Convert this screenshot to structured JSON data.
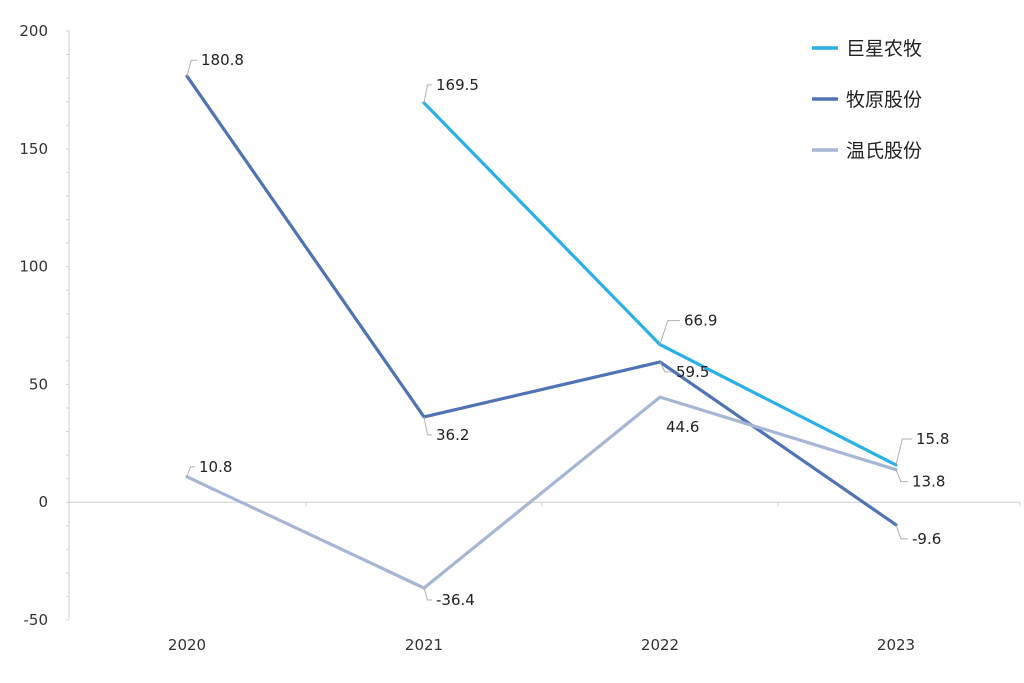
{
  "chart_data": {
    "type": "line",
    "title": "",
    "xlabel": "",
    "ylabel": "",
    "categories": [
      "2020",
      "2021",
      "2022",
      "2023"
    ],
    "ylim": [
      -50,
      200
    ],
    "yticks": [
      -50,
      0,
      50,
      100,
      150,
      200
    ],
    "grid": false,
    "legend_position": "top-right",
    "series": [
      {
        "name": "巨星农牧",
        "color": "#29b0e6",
        "values": [
          null,
          169.5,
          66.9,
          15.8
        ],
        "labels": [
          "",
          "169.5",
          "66.9",
          "15.8"
        ]
      },
      {
        "name": "牧原股份",
        "color": "#4f73b4",
        "values": [
          180.8,
          36.2,
          59.5,
          -9.6
        ],
        "labels": [
          "180.8",
          "36.2",
          "59.5",
          "-9.6"
        ]
      },
      {
        "name": "温氏股份",
        "color": "#a6b7d6",
        "values": [
          10.8,
          -36.4,
          44.6,
          13.8
        ],
        "labels": [
          "10.8",
          "-36.4",
          "44.6",
          "13.8"
        ]
      }
    ]
  }
}
